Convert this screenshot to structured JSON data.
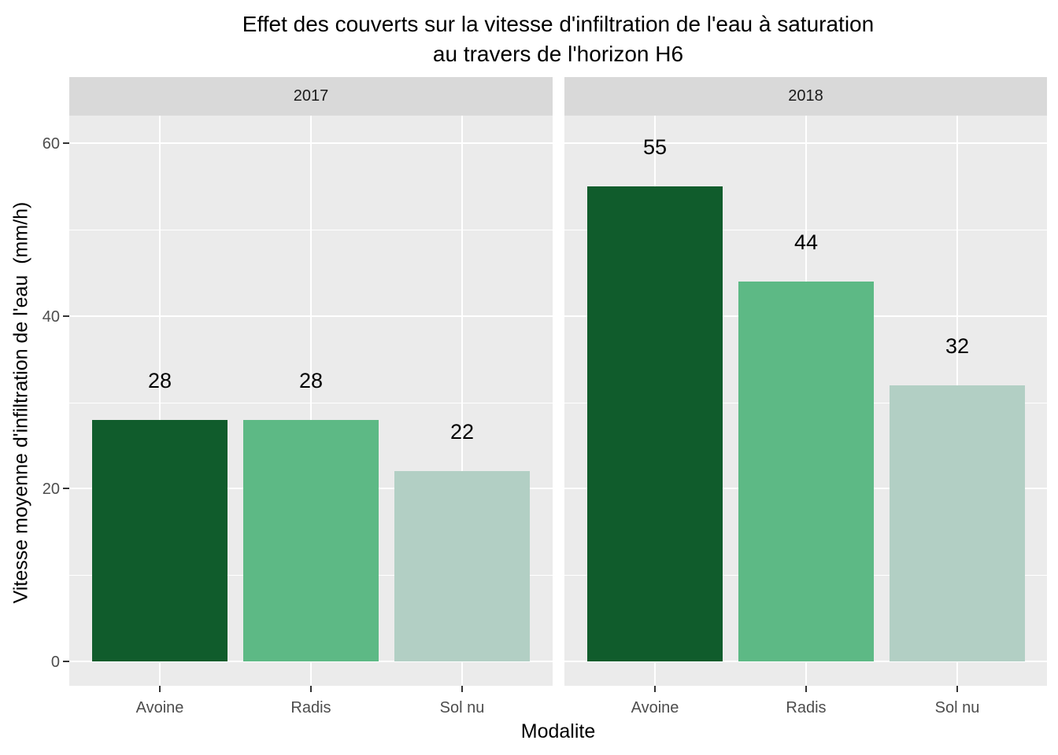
{
  "title": {
    "line1": "Effet des couverts sur la vitesse d'infiltration de l'eau à saturation",
    "line2": "au travers de l'horizon H6"
  },
  "chart_data": {
    "type": "bar",
    "title": "Effet des couverts sur la vitesse d'infiltration de l'eau à saturation au travers de l'horizon H6",
    "xlabel": "Modalite",
    "ylabel": "Vitesse moyenne d'infiltration de l'eau  (mm/h)",
    "categories": [
      "Avoine",
      "Radis",
      "Sol nu"
    ],
    "facets": [
      {
        "label": "2017",
        "values": [
          28,
          28,
          22
        ]
      },
      {
        "label": "2018",
        "values": [
          55,
          44,
          32
        ]
      }
    ],
    "y_ticks": [
      0,
      20,
      40,
      60
    ],
    "y_minor_ticks": [
      10,
      30,
      50
    ],
    "ylim": [
      0,
      63
    ],
    "grid": true,
    "legend": "none",
    "bar_colors": [
      "#105c2c",
      "#5db985",
      "#b2cfc4"
    ],
    "colors": {
      "panel_background": "#ebebeb",
      "strip_background": "#d9d9d9",
      "gridline": "#ffffff",
      "axis_text": "#4d4d4d",
      "strip_text": "#1a1a1a",
      "tick_mark": "#333333",
      "title_text": "#000000",
      "value_label_text": "#000000"
    }
  }
}
